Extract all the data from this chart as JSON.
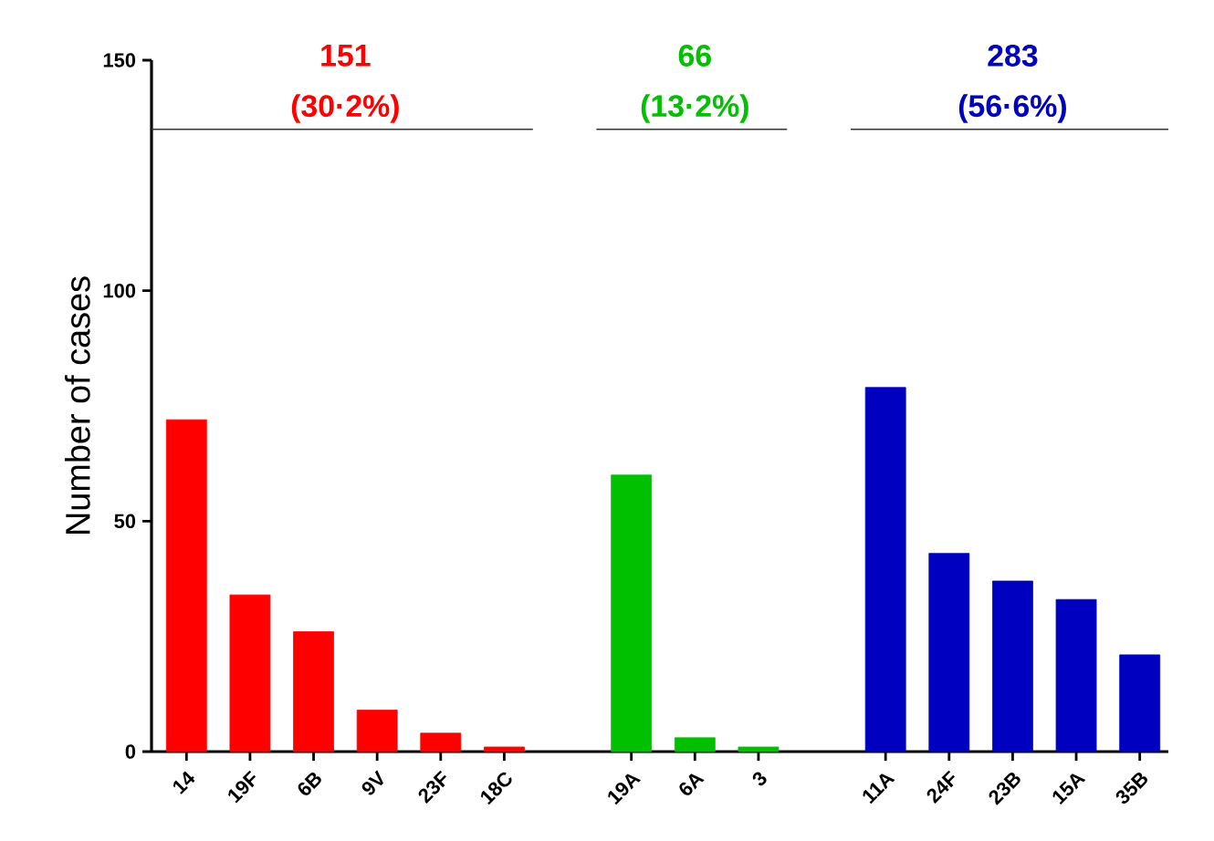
{
  "chart_data": {
    "type": "bar",
    "ylabel": "Number of cases",
    "categories": [
      "14",
      "19F",
      "6B",
      "9V",
      "23F",
      "18C",
      null,
      "19A",
      "6A",
      "3",
      null,
      "11A",
      "24F",
      "23B",
      "15A",
      "35B"
    ],
    "series": [
      {
        "color": "#ff0000",
        "values": [
          72,
          34,
          26,
          9,
          4,
          1,
          null,
          null,
          null,
          null,
          null,
          null,
          null,
          null,
          null,
          null
        ]
      },
      {
        "color": "#00c000",
        "values": [
          null,
          null,
          null,
          null,
          null,
          null,
          null,
          60,
          3,
          1,
          null,
          null,
          null,
          null,
          null,
          null
        ]
      },
      {
        "color": "#0000c0",
        "values": [
          null,
          null,
          null,
          null,
          null,
          null,
          null,
          null,
          null,
          null,
          null,
          79,
          43,
          37,
          33,
          21
        ]
      }
    ],
    "annotations": [
      "151",
      "(30·2%)",
      "66",
      "(13·2%)",
      "283",
      "(56·6%)"
    ],
    "ylim": [
      0,
      150
    ],
    "yticks": [
      0,
      50,
      100,
      150
    ],
    "grid": false
  }
}
